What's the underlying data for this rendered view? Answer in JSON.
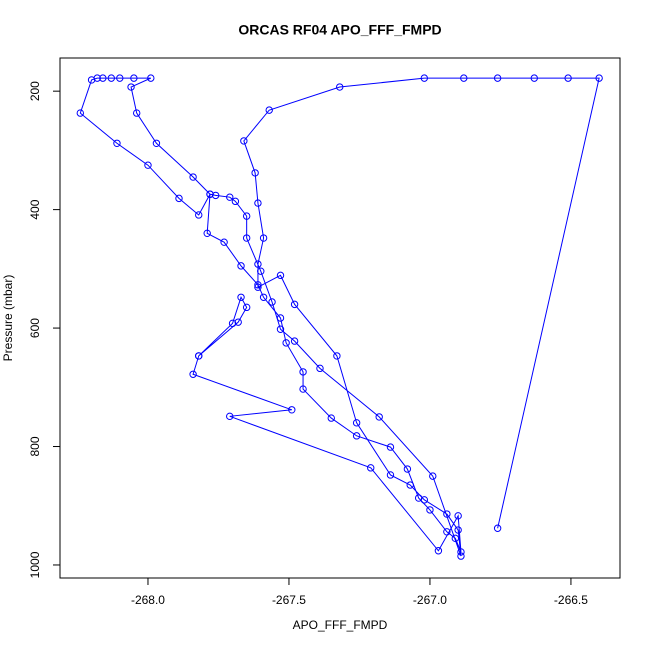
{
  "chart_data": {
    "type": "line",
    "title": "ORCAS RF04 APO_FFF_FMPD",
    "x_label": "APO_FFF_FMPD",
    "y_label": "Pressure (mbar)",
    "xlim": [
      -268.312,
      -266.326
    ],
    "ylim": [
      1022,
      144
    ],
    "xticks": [
      {
        "value": -268.0,
        "label": "-268.0"
      },
      {
        "value": -267.5,
        "label": "-267.5"
      },
      {
        "value": -267.0,
        "label": "-267.0"
      },
      {
        "value": -266.5,
        "label": "-266.5"
      }
    ],
    "yticks": [
      200,
      400,
      600,
      800,
      1000
    ],
    "grid": false,
    "series": [
      {
        "name": "APO_FFF_FMPD",
        "color": "#0000ff",
        "x": [
          -266.76,
          -266.4,
          -266.51,
          -266.63,
          -266.76,
          -266.88,
          -267.02,
          -267.32,
          -267.57,
          -267.66,
          -267.62,
          -267.61,
          -267.59,
          -267.61,
          -267.61,
          -267.53,
          -267.48,
          -267.33,
          -267.26,
          -267.14,
          -267.07,
          -267.02,
          -266.94,
          -266.9,
          -266.89,
          -266.99,
          -267.18,
          -267.39,
          -267.48,
          -267.53,
          -267.56,
          -267.6,
          -267.65,
          -267.65,
          -267.69,
          -267.71,
          -267.76,
          -267.78,
          -267.82,
          -267.89,
          -268.0,
          -268.11,
          -268.24,
          -268.2,
          -268.18,
          -268.16,
          -268.13,
          -268.1,
          -268.05,
          -267.99,
          -268.06,
          -268.04,
          -267.97,
          -267.84,
          -267.78,
          -267.79,
          -267.73,
          -267.67,
          -267.61,
          -267.59,
          -267.53,
          -267.51,
          -267.45,
          -267.45,
          -267.35,
          -267.26,
          -267.14,
          -267.08,
          -267.04,
          -267.0,
          -266.94,
          -266.91,
          -266.89,
          -266.9,
          -266.97,
          -267.21,
          -267.71,
          -267.49,
          -267.84,
          -267.82,
          -267.68,
          -267.65,
          -267.67,
          -267.7,
          -267.82
        ],
        "values": [
          938,
          178,
          178,
          178,
          178,
          178,
          178,
          193,
          232,
          284,
          338,
          389,
          448,
          492,
          531,
          511,
          560,
          647,
          760,
          848,
          865,
          890,
          914,
          941,
          985,
          850,
          750,
          668,
          622,
          602,
          556,
          504,
          448,
          411,
          386,
          379,
          376,
          374,
          409,
          381,
          325,
          288,
          237,
          181,
          178,
          178,
          178,
          178,
          178,
          178,
          193,
          237,
          288,
          345,
          374,
          440,
          455,
          495,
          527,
          548,
          583,
          625,
          674,
          703,
          752,
          782,
          801,
          838,
          887,
          907,
          944,
          955,
          978,
          917,
          976,
          836,
          749,
          738,
          678,
          647,
          590,
          565,
          548,
          592,
          647
        ]
      }
    ]
  }
}
